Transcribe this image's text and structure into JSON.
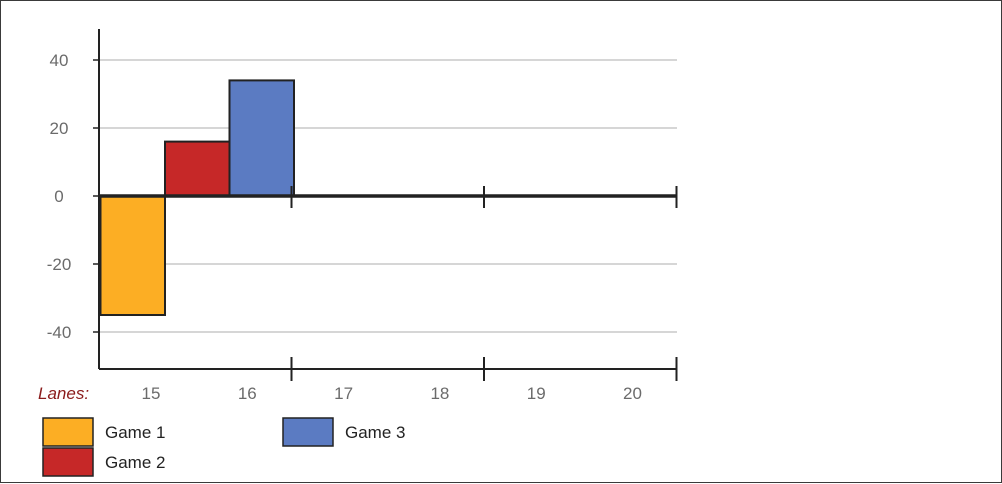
{
  "chart_data": {
    "type": "bar",
    "x_label_prefix": "Lanes:",
    "categories": [
      "15",
      "16",
      "17",
      "18",
      "19",
      "20"
    ],
    "yticks": [
      40,
      20,
      0,
      -20,
      -40
    ],
    "ylim": [
      -50,
      50
    ],
    "grid": true,
    "legend_position": "bottom-left",
    "series": [
      {
        "name": "Game 1",
        "category": "15",
        "value": -35,
        "color": "#fcae24"
      },
      {
        "name": "Game 2",
        "category": "15",
        "value": 16,
        "color": "#c62828"
      },
      {
        "name": "Game 3",
        "category": "16",
        "value": 34,
        "color": "#5b7bc2"
      }
    ]
  }
}
